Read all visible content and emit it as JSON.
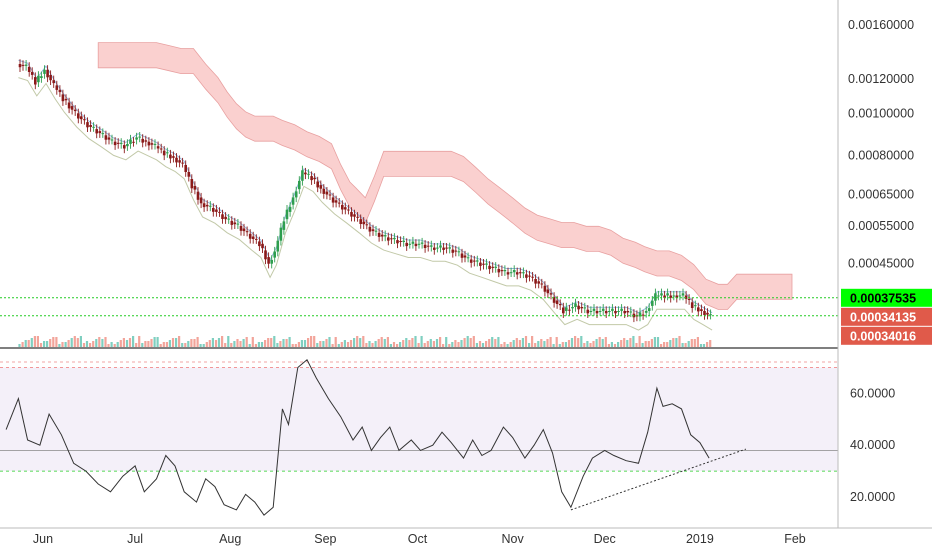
{
  "chart_data": [
    {
      "type": "candlestick",
      "scale": "log",
      "ylim": [
        0.0003,
        0.00175
      ],
      "x_tick_labels": [
        "Jun",
        "Jul",
        "Aug",
        "Sep",
        "Oct",
        "Nov",
        "Dec",
        "2019",
        "Feb"
      ],
      "y_tick_labels": [
        "0.00160000",
        "0.00120000",
        "0.00100000",
        "0.00080000",
        "0.00065000",
        "0.00055000",
        "0.00045000"
      ],
      "y_tick_values": [
        0.0016,
        0.0012,
        0.001,
        0.0008,
        0.00065,
        0.00055,
        0.00045
      ],
      "price_path": [
        [
          "2018-05-24",
          0.0013
        ],
        [
          "2018-05-27",
          0.00128
        ],
        [
          "2018-05-30",
          0.00118
        ],
        [
          "2018-06-02",
          0.00126
        ],
        [
          "2018-06-05",
          0.00116
        ],
        [
          "2018-06-08",
          0.00108
        ],
        [
          "2018-06-12",
          0.001
        ],
        [
          "2018-06-16",
          0.00094
        ],
        [
          "2018-06-20",
          0.0009
        ],
        [
          "2018-06-24",
          0.00086
        ],
        [
          "2018-06-28",
          0.00084
        ],
        [
          "2018-07-02",
          0.00088
        ],
        [
          "2018-07-05",
          0.00086
        ],
        [
          "2018-07-08",
          0.00084
        ],
        [
          "2018-07-11",
          0.00081
        ],
        [
          "2018-07-14",
          0.00079
        ],
        [
          "2018-07-17",
          0.00076
        ],
        [
          "2018-07-20",
          0.00068
        ],
        [
          "2018-07-23",
          0.00062
        ],
        [
          "2018-07-27",
          0.0006
        ],
        [
          "2018-07-31",
          0.00057
        ],
        [
          "2018-08-04",
          0.00055
        ],
        [
          "2018-08-08",
          0.00052
        ],
        [
          "2018-08-11",
          0.0005
        ],
        [
          "2018-08-14",
          0.00045
        ],
        [
          "2018-08-16",
          0.00048
        ],
        [
          "2018-08-19",
          0.00057
        ],
        [
          "2018-08-22",
          0.00064
        ],
        [
          "2018-08-25",
          0.00073
        ],
        [
          "2018-08-28",
          0.00071
        ],
        [
          "2018-08-31",
          0.00067
        ],
        [
          "2018-09-04",
          0.00063
        ],
        [
          "2018-09-08",
          0.0006
        ],
        [
          "2018-09-12",
          0.00057
        ],
        [
          "2018-09-16",
          0.00054
        ],
        [
          "2018-09-20",
          0.00052
        ],
        [
          "2018-09-24",
          0.00051
        ],
        [
          "2018-09-28",
          0.0005
        ],
        [
          "2018-10-02",
          0.0005
        ],
        [
          "2018-10-06",
          0.00049
        ],
        [
          "2018-10-10",
          0.00049
        ],
        [
          "2018-10-14",
          0.00048
        ],
        [
          "2018-10-18",
          0.00046
        ],
        [
          "2018-10-22",
          0.00045
        ],
        [
          "2018-10-26",
          0.00044
        ],
        [
          "2018-10-30",
          0.00043
        ],
        [
          "2018-11-03",
          0.00043
        ],
        [
          "2018-11-07",
          0.00042
        ],
        [
          "2018-11-11",
          0.0004
        ],
        [
          "2018-11-15",
          0.00037
        ],
        [
          "2018-11-18",
          0.00035
        ],
        [
          "2018-11-22",
          0.00036
        ],
        [
          "2018-11-26",
          0.00035
        ],
        [
          "2018-11-30",
          0.00035
        ],
        [
          "2018-12-04",
          0.00035
        ],
        [
          "2018-12-08",
          0.00035
        ],
        [
          "2018-12-12",
          0.00034
        ],
        [
          "2018-12-15",
          0.00035
        ],
        [
          "2018-12-18",
          0.00038
        ],
        [
          "2018-12-21",
          0.00038
        ],
        [
          "2018-12-24",
          0.00038
        ],
        [
          "2018-12-27",
          0.00038
        ],
        [
          "2018-12-30",
          0.00036
        ],
        [
          "2019-01-02",
          0.00035
        ],
        [
          "2019-01-05",
          0.00034
        ]
      ],
      "horizontal_lines": [
        {
          "value": 0.00037535,
          "label": "0.00037535",
          "badge_color": "#00ff00",
          "text_color": "#000000"
        },
        {
          "value": 0.00034135,
          "label": "0.00034135",
          "badge_color": "#e05a4a",
          "text_color": "#ffffff"
        },
        {
          "value": 0.00034016,
          "label": "0.00034016",
          "badge_color": "#e05a4a",
          "text_color": "#ffffff"
        }
      ],
      "cloud_color": "#f8b7b5",
      "up_color": "#2e9e4e",
      "down_color": "#8b1a1a",
      "volume_up_color": "#7fcfc0",
      "volume_down_color": "#f2a49a"
    },
    {
      "type": "line",
      "indicator": "RSI",
      "ylim": [
        8,
        76
      ],
      "y_tick_labels": [
        "60.0000",
        "40.0000",
        "20.0000"
      ],
      "y_tick_values": [
        60,
        40,
        20
      ],
      "band": [
        30,
        70
      ],
      "mid": 38,
      "series": [
        [
          "2018-05-20",
          46
        ],
        [
          "2018-05-24",
          58
        ],
        [
          "2018-05-27",
          42
        ],
        [
          "2018-05-31",
          40
        ],
        [
          "2018-06-03",
          52
        ],
        [
          "2018-06-07",
          44
        ],
        [
          "2018-06-11",
          33
        ],
        [
          "2018-06-15",
          30
        ],
        [
          "2018-06-19",
          25
        ],
        [
          "2018-06-23",
          22
        ],
        [
          "2018-06-27",
          28
        ],
        [
          "2018-07-01",
          32
        ],
        [
          "2018-07-04",
          22
        ],
        [
          "2018-07-08",
          27
        ],
        [
          "2018-07-11",
          36
        ],
        [
          "2018-07-14",
          32
        ],
        [
          "2018-07-17",
          22
        ],
        [
          "2018-07-21",
          18
        ],
        [
          "2018-07-24",
          27
        ],
        [
          "2018-07-27",
          24
        ],
        [
          "2018-07-30",
          17
        ],
        [
          "2018-08-03",
          15
        ],
        [
          "2018-08-06",
          21
        ],
        [
          "2018-08-09",
          18
        ],
        [
          "2018-08-12",
          13
        ],
        [
          "2018-08-15",
          16
        ],
        [
          "2018-08-18",
          54
        ],
        [
          "2018-08-20",
          48
        ],
        [
          "2018-08-23",
          70
        ],
        [
          "2018-08-26",
          73
        ],
        [
          "2018-08-29",
          66
        ],
        [
          "2018-09-02",
          58
        ],
        [
          "2018-09-06",
          51
        ],
        [
          "2018-09-10",
          42
        ],
        [
          "2018-09-13",
          47
        ],
        [
          "2018-09-16",
          38
        ],
        [
          "2018-09-19",
          43
        ],
        [
          "2018-09-22",
          47
        ],
        [
          "2018-09-25",
          38
        ],
        [
          "2018-09-29",
          42
        ],
        [
          "2018-10-02",
          38
        ],
        [
          "2018-10-06",
          40
        ],
        [
          "2018-10-09",
          45
        ],
        [
          "2018-10-12",
          41
        ],
        [
          "2018-10-16",
          35
        ],
        [
          "2018-10-19",
          42
        ],
        [
          "2018-10-22",
          36
        ],
        [
          "2018-10-25",
          38
        ],
        [
          "2018-10-29",
          47
        ],
        [
          "2018-11-01",
          43
        ],
        [
          "2018-11-05",
          35
        ],
        [
          "2018-11-08",
          40
        ],
        [
          "2018-11-11",
          46
        ],
        [
          "2018-11-14",
          37
        ],
        [
          "2018-11-17",
          22
        ],
        [
          "2018-11-20",
          16
        ],
        [
          "2018-11-24",
          28
        ],
        [
          "2018-11-27",
          35
        ],
        [
          "2018-12-01",
          38
        ],
        [
          "2018-12-04",
          36
        ],
        [
          "2018-12-08",
          34
        ],
        [
          "2018-12-12",
          33
        ],
        [
          "2018-12-15",
          45
        ],
        [
          "2018-12-18",
          62
        ],
        [
          "2018-12-20",
          55
        ],
        [
          "2018-12-23",
          56
        ],
        [
          "2018-12-26",
          54
        ],
        [
          "2018-12-29",
          44
        ],
        [
          "2019-01-01",
          41
        ],
        [
          "2019-01-04",
          35
        ]
      ],
      "trendline": [
        [
          "2018-11-20",
          15
        ],
        [
          "2019-01-16",
          38.5
        ]
      ]
    }
  ]
}
